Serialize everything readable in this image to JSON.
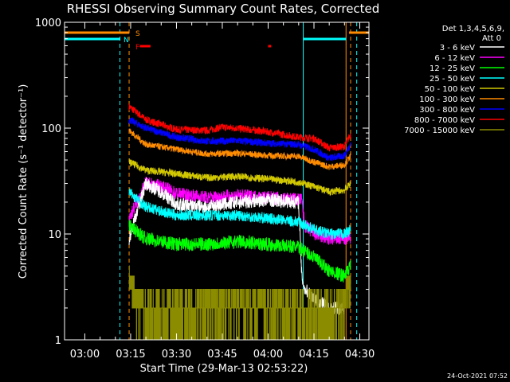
{
  "chart_data": {
    "type": "line",
    "title": "RHESSI Observing Summary Count Rates, Corrected",
    "xlabel": "Start Time (29-Mar-13 02:53:22)",
    "ylabel": "Corrected Count Rate (s⁻¹ detector⁻¹)",
    "y_scale": "log",
    "ylim": [
      1,
      1000
    ],
    "xlim": [
      "02:53:22",
      "04:33:00"
    ],
    "x_ticks": [
      "03:00",
      "03:15",
      "03:30",
      "03:45",
      "04:00",
      "04:15",
      "04:30"
    ],
    "y_ticks": [
      "1",
      "10",
      "100",
      "1000"
    ],
    "legend": {
      "placement": "right",
      "header": [
        "Det 1,3,4,5,6,9,",
        "Att 0"
      ],
      "entries": [
        {
          "label": "3 - 6 keV",
          "color": "#ffffff"
        },
        {
          "label": "6 - 12 keV",
          "color": "#ff00ff"
        },
        {
          "label": "12 - 25 keV",
          "color": "#00ff00"
        },
        {
          "label": "25 - 50 keV",
          "color": "#00ffff"
        },
        {
          "label": "50 - 100 keV",
          "color": "#d2c800"
        },
        {
          "label": "100 - 300 keV",
          "color": "#ff8c00"
        },
        {
          "label": "300 - 800 keV",
          "color": "#0000ff"
        },
        {
          "label": "800 - 7000 keV",
          "color": "#ff0000"
        },
        {
          "label": "7000 - 15000 keV",
          "color": "#8c8c00"
        }
      ]
    },
    "flags": [
      {
        "label": "S",
        "color": "#ff8c00",
        "segments": [
          [
            "02:53:22",
            "03:14:30"
          ],
          [
            "04:26:30",
            "04:33:00"
          ]
        ]
      },
      {
        "label": "N",
        "color": "#00ffff",
        "segments": [
          [
            "02:53:22",
            "03:11:30"
          ],
          [
            "04:11:30",
            "04:25:30"
          ]
        ]
      },
      {
        "label": "F",
        "color": "#ff0000",
        "segments": [
          [
            "03:18:00",
            "03:21:30"
          ],
          [
            "04:00:00",
            "04:01:00"
          ]
        ]
      }
    ],
    "vlines": [
      {
        "time": "02:53:22",
        "color": "#00ffff",
        "style": "solid"
      },
      {
        "time": "03:11:30",
        "color": "#00ffff",
        "style": "dashed"
      },
      {
        "time": "03:14:30",
        "color": "#ff8c00",
        "style": "dashed"
      },
      {
        "time": "04:11:30",
        "color": "#00ffff",
        "style": "solid"
      },
      {
        "time": "04:25:30",
        "color": "#ff8c00",
        "style": "solid"
      },
      {
        "time": "04:27:00",
        "color": "#ff8c00",
        "style": "dashed"
      },
      {
        "time": "04:29:00",
        "color": "#00ffff",
        "style": "dashed"
      }
    ],
    "series": [
      {
        "name": "800 - 7000 keV",
        "color": "#ff0000",
        "noise": 0.08,
        "x": [
          "03:14:30",
          "03:20:00",
          "03:30:00",
          "03:40:00",
          "03:45:00",
          "03:50:00",
          "04:00:00",
          "04:10:00",
          "04:15:00",
          "04:20:00",
          "04:25:00",
          "04:27:00"
        ],
        "values": [
          160,
          120,
          97,
          95,
          102,
          100,
          92,
          82,
          80,
          65,
          67,
          88
        ]
      },
      {
        "name": "300 - 800 keV",
        "color": "#0000ff",
        "noise": 0.08,
        "x": [
          "03:14:30",
          "03:20:00",
          "03:30:00",
          "03:40:00",
          "03:50:00",
          "04:00:00",
          "04:10:00",
          "04:15:00",
          "04:20:00",
          "04:25:00",
          "04:27:00"
        ],
        "values": [
          120,
          100,
          82,
          75,
          76,
          72,
          70,
          63,
          52,
          55,
          72
        ]
      },
      {
        "name": "100 - 300 keV",
        "color": "#ff8c00",
        "noise": 0.07,
        "x": [
          "03:14:30",
          "03:20:00",
          "03:30:00",
          "03:40:00",
          "03:50:00",
          "04:00:00",
          "04:10:00",
          "04:15:00",
          "04:20:00",
          "04:25:00",
          "04:27:00"
        ],
        "values": [
          95,
          70,
          63,
          57,
          58,
          55,
          54,
          48,
          43,
          45,
          55
        ]
      },
      {
        "name": "50 - 100 keV",
        "color": "#d2c800",
        "noise": 0.08,
        "x": [
          "03:14:30",
          "03:20:00",
          "03:30:00",
          "03:40:00",
          "03:50:00",
          "04:00:00",
          "04:10:00",
          "04:15:00",
          "04:20:00",
          "04:25:00",
          "04:27:00"
        ],
        "values": [
          48,
          40,
          37,
          34,
          35,
          33,
          31,
          28,
          25,
          26,
          30
        ]
      },
      {
        "name": "6 - 12 keV",
        "color": "#ff00ff",
        "noise": 0.15,
        "x": [
          "03:14:30",
          "03:17:00",
          "03:20:00",
          "03:25:00",
          "03:30:00",
          "03:40:00",
          "03:50:00",
          "04:00:00",
          "04:11:00",
          "04:12:00",
          "04:15:00",
          "04:20:00",
          "04:25:00",
          "04:27:00"
        ],
        "values": [
          14,
          20,
          30,
          28,
          24,
          22,
          23,
          22,
          21,
          12,
          10,
          9,
          9,
          9
        ]
      },
      {
        "name": "3 - 6 keV",
        "color": "#ffffff",
        "noise": 0.15,
        "x": [
          "03:14:30",
          "03:16:00",
          "03:20:00",
          "03:25:00",
          "03:30:00",
          "03:40:00",
          "03:50:00",
          "04:00:00",
          "04:10:00",
          "04:11:00",
          "04:12:00",
          "04:15:00",
          "04:20:00",
          "04:25:00"
        ],
        "values": [
          9,
          13,
          30,
          25,
          19,
          18,
          20,
          21,
          20,
          4,
          3,
          2.5,
          2,
          2
        ]
      },
      {
        "name": "25 - 50 keV",
        "color": "#00ffff",
        "noise": 0.12,
        "x": [
          "03:14:30",
          "03:20:00",
          "03:30:00",
          "03:40:00",
          "03:50:00",
          "04:00:00",
          "04:10:00",
          "04:15:00",
          "04:20:00",
          "04:25:00",
          "04:27:00"
        ],
        "values": [
          25,
          18,
          15,
          15,
          15,
          14,
          13,
          11,
          10,
          10,
          11
        ]
      },
      {
        "name": "12 - 25 keV",
        "color": "#00ff00",
        "noise": 0.15,
        "x": [
          "03:14:30",
          "03:20:00",
          "03:30:00",
          "03:40:00",
          "03:50:00",
          "04:00:00",
          "04:10:00",
          "04:15:00",
          "04:20:00",
          "04:25:00",
          "04:27:00"
        ],
        "values": [
          12,
          9,
          8,
          8,
          8.5,
          8,
          7.5,
          6,
          4.5,
          4,
          5
        ]
      },
      {
        "name": "7000 - 15000 keV",
        "color": "#8c8c00",
        "quantized": true,
        "x": [
          "03:14:30",
          "03:18:00",
          "03:20:00",
          "03:30:00",
          "03:40:00",
          "03:50:00",
          "04:00:00",
          "04:10:00",
          "04:20:00",
          "04:27:00"
        ],
        "values": [
          3.5,
          2.2,
          1.7,
          1.8,
          2.0,
          2.2,
          2.3,
          1.9,
          1.6,
          3.0
        ]
      }
    ]
  },
  "timestamp": "24-Oct-2021 07:52"
}
